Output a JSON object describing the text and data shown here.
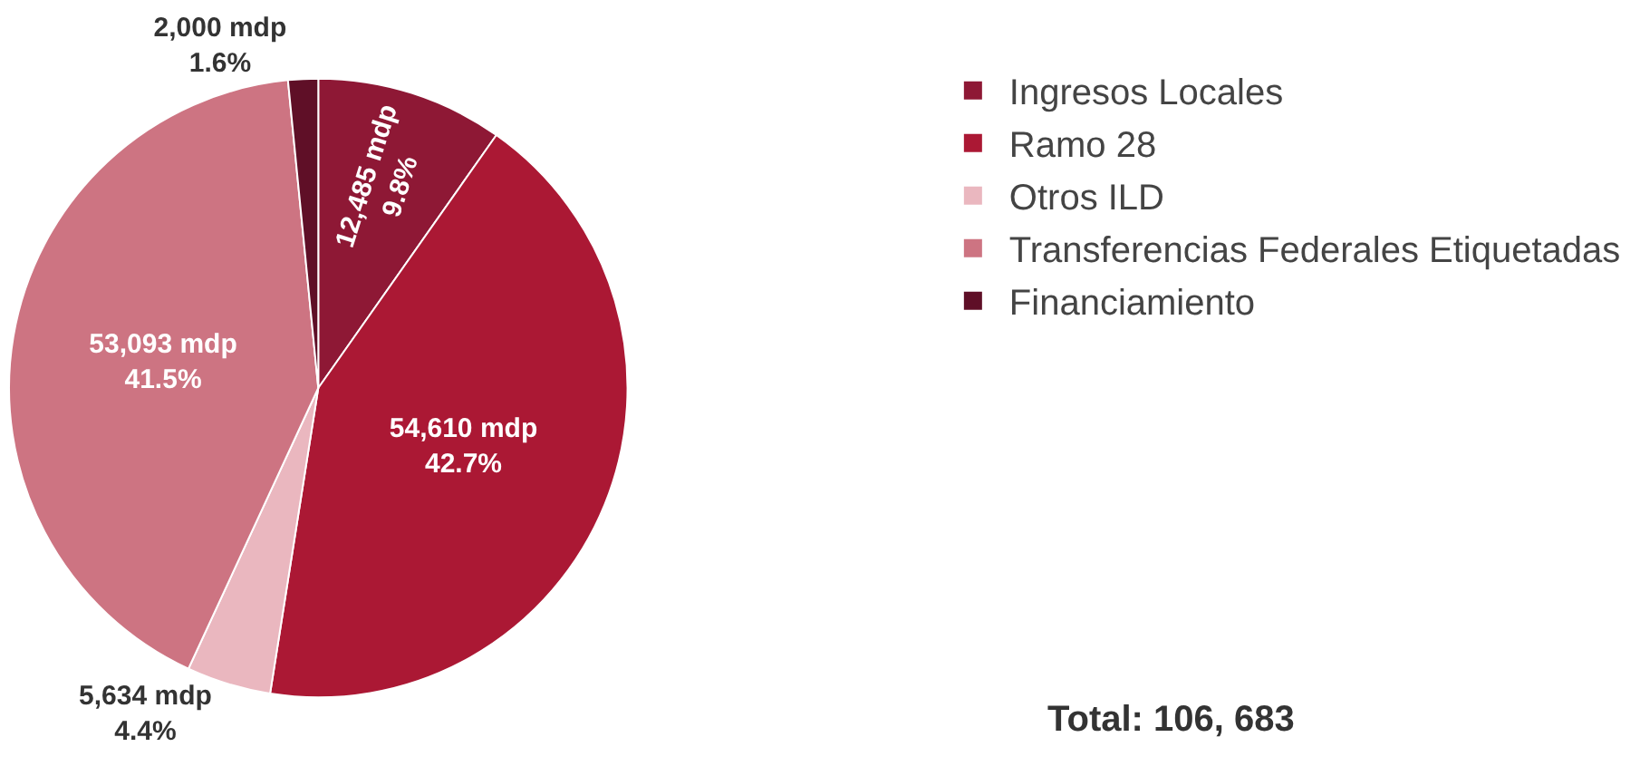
{
  "chart_data": {
    "type": "pie",
    "categories": [
      "Ingresos Locales",
      "Ramo 28",
      "Otros ILD",
      "Transferencias Federales Etiquetadas",
      "Financiamiento"
    ],
    "values": [
      12485,
      54610,
      5634,
      53093,
      2000
    ],
    "colors": [
      "#8e1835",
      "#ab1834",
      "#eab7bf",
      "#cd7482",
      "#5f0f27"
    ],
    "value_labels": [
      "12,485 mdp\n9.8%",
      "54,610 mdp\n42.7%",
      "5,634 mdp\n4.4%",
      "53,093 mdp\n41.5%",
      "2,000 mdp\n1.6%"
    ],
    "legend": "right",
    "annotations": [
      "Total: 106, 683"
    ]
  }
}
